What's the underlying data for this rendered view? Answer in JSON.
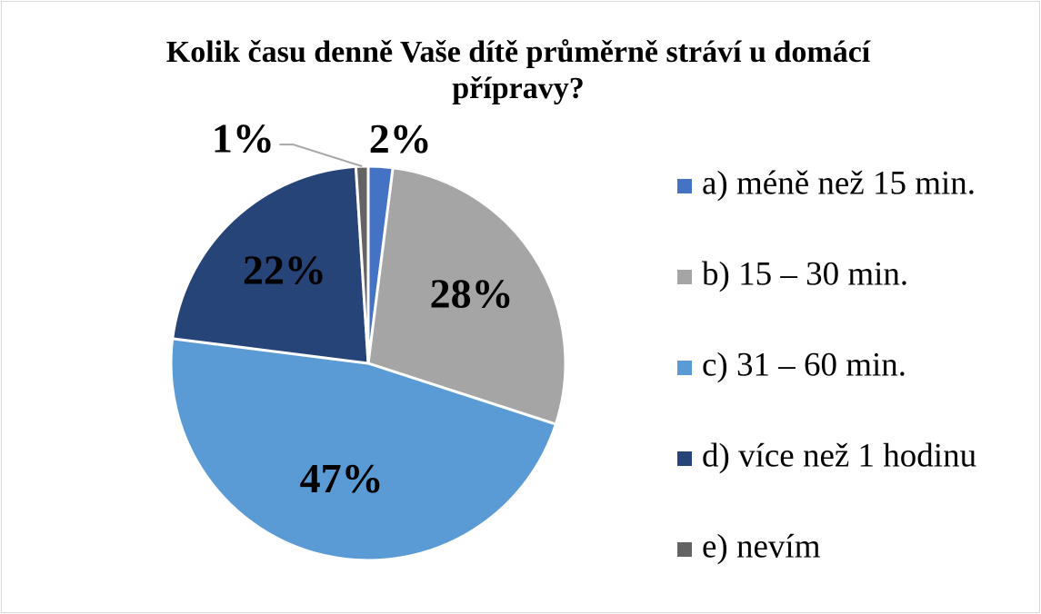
{
  "chart_data": {
    "type": "pie",
    "title": "Kolik času denně Vaše dítě průměrně stráví u domácí přípravy?",
    "categories": [
      "a) méně než 15 min.",
      "b) 15 – 30 min.",
      "c) 31 –  60 min.",
      "d) více než 1 hodinu",
      "e) nevím"
    ],
    "values": [
      2,
      28,
      47,
      22,
      1
    ],
    "value_labels": [
      "2%",
      "28%",
      "47%",
      "22%",
      "1%"
    ],
    "colors": [
      "#4472c4",
      "#a5a5a5",
      "#5b9bd5",
      "#264478",
      "#636363"
    ],
    "legend": "right"
  }
}
